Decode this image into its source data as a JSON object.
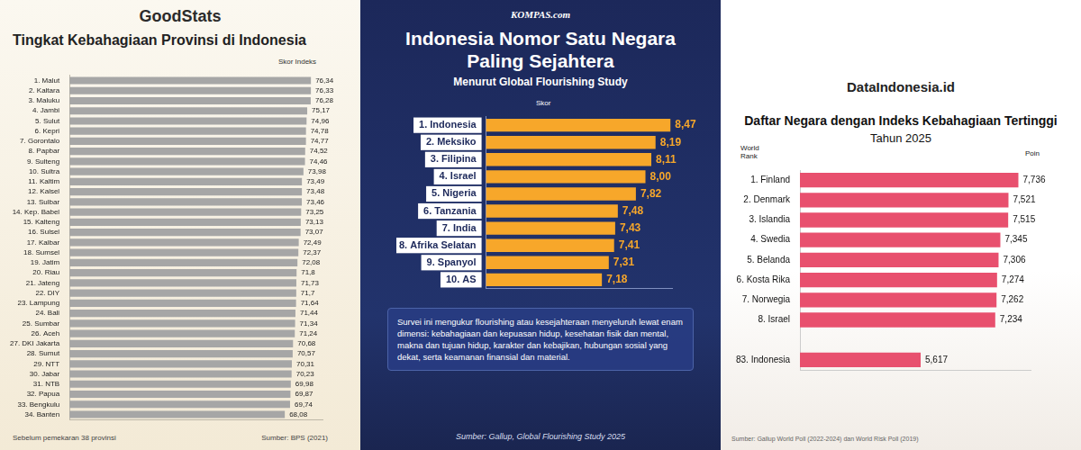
{
  "chart_data": [
    {
      "type": "bar",
      "brand": "GoodStats",
      "title": "Tingkat Kebahagiaan Provinsi di Indonesia",
      "value_header": "Skor Indeks",
      "categories": [
        "1. Malut",
        "2. Kaltara",
        "3. Maluku",
        "4. Jambi",
        "5. Sulut",
        "6. Kepri",
        "7. Gorontalo",
        "8. Papbar",
        "9. Sulteng",
        "10. Sultra",
        "11. Kaltim",
        "12. Kalsel",
        "13. Sulbar",
        "14. Kep. Babel",
        "15. Kalteng",
        "16. Sulsel",
        "17. Kalbar",
        "18. Sumsel",
        "19. Jatim",
        "20. Riau",
        "21. Jateng",
        "22. DIY",
        "23. Lampung",
        "24. Bali",
        "25. Sumbar",
        "26. Aceh",
        "27. DKI Jakarta",
        "28. Sumut",
        "29. NTT",
        "30. Jabar",
        "31. NTB",
        "32. Papua",
        "33. Bengkulu",
        "34. Banten"
      ],
      "values": [
        76.34,
        76.33,
        76.28,
        75.17,
        74.96,
        74.78,
        74.77,
        74.52,
        74.46,
        73.98,
        73.49,
        73.48,
        73.46,
        73.25,
        73.13,
        73.07,
        72.49,
        72.37,
        72.08,
        71.8,
        71.73,
        71.7,
        71.64,
        71.44,
        71.34,
        71.24,
        70.68,
        70.57,
        70.31,
        70.23,
        69.98,
        69.87,
        69.74,
        68.08
      ],
      "value_labels": [
        "76,34",
        "76,33",
        "76,28",
        "75,17",
        "74,96",
        "74,78",
        "74,77",
        "74,52",
        "74,46",
        "73,98",
        "73,49",
        "73,48",
        "73,46",
        "73,25",
        "73,13",
        "73,07",
        "72,49",
        "72,37",
        "72,08",
        "71,8",
        "71,73",
        "71,7",
        "71,64",
        "71,44",
        "71,34",
        "71,24",
        "70,68",
        "70,57",
        "70,31",
        "70,23",
        "69,98",
        "69,87",
        "69,74",
        "68,08"
      ],
      "color": "#a6a6a6",
      "orientation": "horizontal",
      "xlim": [
        0,
        80
      ],
      "grid": false,
      "tick_labels": "y",
      "data_labels": true,
      "note": "Sebelum pemekaran 38 provinsi",
      "source": "Sumber: BPS (2021)"
    },
    {
      "type": "bar",
      "brand": "KOMPAS.com",
      "title": "Indonesia Nomor Satu Negara Paling Sejahtera",
      "subtitle": "Menurut Global Flourishing Study",
      "value_header": "Skor",
      "categories": [
        "1. Indonesia",
        "2. Meksiko",
        "3. Filipina",
        "4. Israel",
        "5. Nigeria",
        "6. Tanzania",
        "7. India",
        "8. Afrika Selatan",
        "9. Spanyol",
        "10. AS"
      ],
      "values": [
        8.47,
        8.19,
        8.11,
        8.0,
        7.82,
        7.48,
        7.43,
        7.41,
        7.31,
        7.18
      ],
      "value_labels": [
        "8,47",
        "8,19",
        "8,11",
        "8,00",
        "7,82",
        "7,48",
        "7,43",
        "7,41",
        "7,31",
        "7,18"
      ],
      "color": "#f7a72a",
      "orientation": "horizontal",
      "xlim": [
        5,
        8.5
      ],
      "grid": false,
      "tick_labels": "y",
      "data_labels": true,
      "description": "Survei ini mengukur flourishing atau kesejahteraan menyeluruh lewat enam dimensi: kebahagiaan dan kepuasan hidup, kesehatan fisik dan mental, makna dan tujuan hidup, karakter dan kebajikan, hubungan sosial yang dekat, serta keamanan finansial dan material.",
      "source": "Sumber: Gallup, Global Flourishing Study 2025"
    },
    {
      "type": "bar",
      "brand": "DataIndonesia.id",
      "title": "Daftar Negara dengan Indeks Kebahagiaan Tertinggi",
      "subtitle": "Tahun 2025",
      "rank_header": "World Rank",
      "value_header": "Poin",
      "categories": [
        "1. Finland",
        "2. Denmark",
        "3. Islandia",
        "4. Swedia",
        "5. Belanda",
        "6. Kosta Rika",
        "7. Norwegia",
        "8. Israel",
        null,
        "83. Indonesia"
      ],
      "values": [
        7.736,
        7.521,
        7.515,
        7.345,
        7.306,
        7.274,
        7.262,
        7.234,
        null,
        5.617
      ],
      "value_labels": [
        "7,736",
        "7,521",
        "7,515",
        "7,345",
        "7,306",
        "7,274",
        "7,262",
        "7,234",
        null,
        "5,617"
      ],
      "color": "#e8506e",
      "orientation": "horizontal",
      "xlim": [
        3,
        8
      ],
      "grid": false,
      "tick_labels": "y",
      "data_labels": true,
      "source": "Sumber: Gallup World Poll (2022-2024) dan World Risk Poll (2019)"
    }
  ]
}
